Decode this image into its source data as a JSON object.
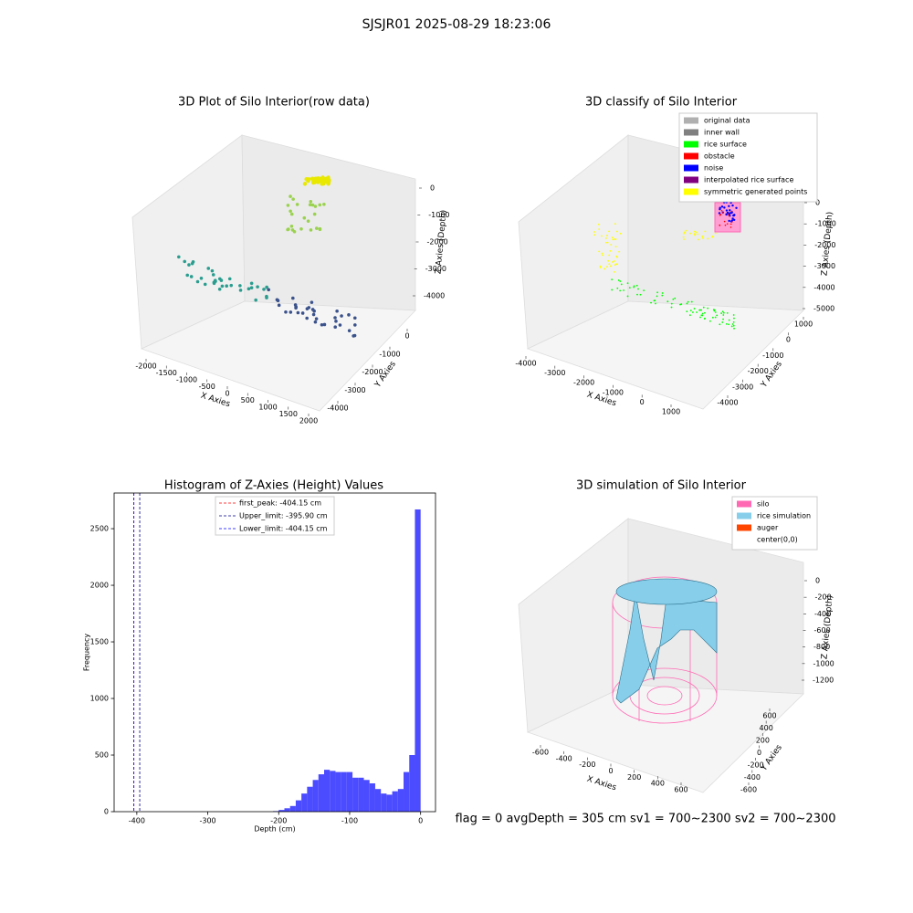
{
  "title": "SJSJR01 2025-08-29 18:23:06",
  "footer": "flag = 0     avgDepth = 305 cm  sv1 = 700~2300  sv2 = 700~2300",
  "chart_data": [
    {
      "type": "scatter3d",
      "title": "3D Plot of Silo Interior(row data)",
      "xlabel": "X Axies",
      "ylabel": "Y Axies",
      "zlabel": "Z Axies (Depth)",
      "xticks": [
        -2000,
        -1500,
        -1000,
        -500,
        0,
        500,
        1000,
        1500,
        2000
      ],
      "yticks": [
        0,
        -1000,
        -2000,
        -3000,
        -4000
      ],
      "zticks": [
        0,
        -1000,
        -2000,
        -3000,
        -4000
      ]
    },
    {
      "type": "scatter3d",
      "title": "3D classify of Silo Interior",
      "xlabel": "X Axies",
      "ylabel": "Y Axies",
      "zlabel": "Z Axies (Depth)",
      "xticks": [
        -4000,
        -3000,
        -2000,
        -1000,
        0,
        1000
      ],
      "yticks": [
        1000,
        0,
        -1000,
        -2000,
        -3000,
        -4000
      ],
      "zticks": [
        0,
        -1000,
        -2000,
        -3000,
        -4000,
        -5000
      ],
      "legend": [
        {
          "name": "original data",
          "color": "#b0b0b0"
        },
        {
          "name": "inner wall",
          "color": "#808080"
        },
        {
          "name": "rice surface",
          "color": "#00ff00"
        },
        {
          "name": "obstacle",
          "color": "#ff0000"
        },
        {
          "name": "noise",
          "color": "#0000ff"
        },
        {
          "name": "interpolated rice surface",
          "color": "#800080"
        },
        {
          "name": "symmetric generated points",
          "color": "#ffff00"
        }
      ]
    },
    {
      "type": "histogram",
      "title": "Histogram of Z-Axies (Height) Values",
      "xlabel": "Depth (cm)",
      "ylabel": "Frequency",
      "color": "#4b4bff",
      "bins": [
        -208,
        -200,
        -192,
        -184,
        -176,
        -168,
        -160,
        -152,
        -144,
        -136,
        -128,
        -120,
        -112,
        -104,
        -96,
        -88,
        -80,
        -72,
        -64,
        -56,
        -48,
        -40,
        -32,
        -24,
        -16,
        -8,
        0
      ],
      "counts": [
        5,
        15,
        30,
        50,
        100,
        160,
        220,
        280,
        330,
        370,
        360,
        350,
        350,
        350,
        300,
        300,
        280,
        250,
        200,
        160,
        150,
        180,
        200,
        350,
        500,
        2670
      ],
      "xlim": [
        -432,
        21
      ],
      "ylim": [
        0,
        2815
      ],
      "xticks": [
        -400,
        -300,
        -200,
        -100,
        0
      ],
      "yticks": [
        0,
        500,
        1000,
        1500,
        2000,
        2500
      ],
      "lines": [
        {
          "name": "first_peak: -404.15 cm",
          "value": -404.15,
          "color": "#ff0000"
        },
        {
          "name": "Upper_limit: -395.90 cm",
          "value": -395.9,
          "color": "#00008b"
        },
        {
          "name": "Lower_limit: -404.15 cm",
          "value": -404.15,
          "color": "#0000ff"
        }
      ]
    },
    {
      "type": "surface3d",
      "title": "3D simulation of Silo Interior",
      "xlabel": "X Axies",
      "ylabel": "Y Axies",
      "zlabel": "Z Axies (Depth)",
      "xticks": [
        -600,
        -400,
        -200,
        0,
        200,
        400,
        600
      ],
      "yticks": [
        -600,
        -400,
        -200,
        0,
        200,
        400,
        600
      ],
      "zticks": [
        0,
        -200,
        -400,
        -600,
        -800,
        -1000,
        -1200
      ],
      "legend": [
        {
          "name": "silo",
          "color": "#ff69b4"
        },
        {
          "name": "rice simulation",
          "color": "#87ceeb"
        },
        {
          "name": "auger",
          "color": "#ff4500"
        },
        {
          "name": "center(0,0)",
          "color": "#ffffff"
        }
      ]
    }
  ]
}
